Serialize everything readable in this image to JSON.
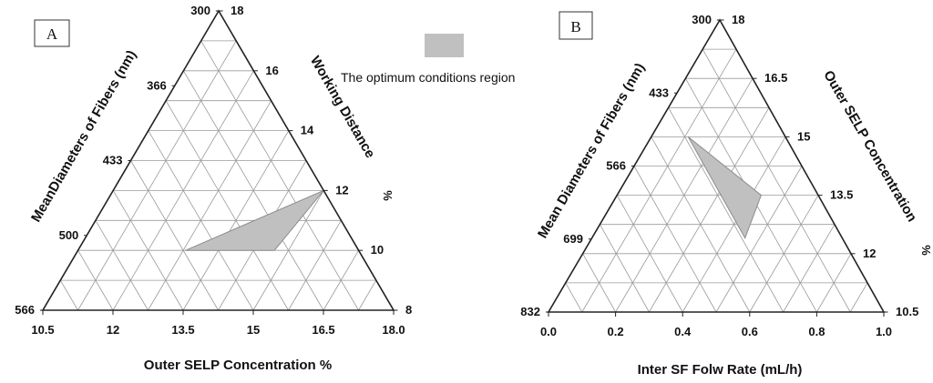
{
  "legend": {
    "label": "The optimum conditions region",
    "color": "#c0c0c0"
  },
  "chart_data": [
    {
      "type": "ternary",
      "panel": "A",
      "left_axis": {
        "label": "MeanDiameters of Fibers  (nm)",
        "ticks": [
          "300",
          "366",
          "433",
          "500",
          "566"
        ]
      },
      "right_axis": {
        "label": "Working Distance",
        "unit": "%",
        "ticks": [
          "18",
          "16",
          "14",
          "12",
          "10",
          "8"
        ]
      },
      "bottom_axis": {
        "label": "Outer SELP Concentration %",
        "ticks": [
          "10.5",
          "12",
          "13.5",
          "15",
          "16.5",
          "18.0"
        ]
      },
      "optimum_region": [
        {
          "outer_selp_concentration": 14.3,
          "working_distance": 10.0,
          "mean_diameter": 535
        },
        {
          "outer_selp_concentration": 18.0,
          "working_distance": 12.0,
          "mean_diameter": 433
        },
        {
          "outer_selp_concentration": 16.2,
          "working_distance": 10.0,
          "mean_diameter": 555
        }
      ]
    },
    {
      "type": "ternary",
      "panel": "B",
      "left_axis": {
        "label": "Mean Diameters of Fibers  (nm)",
        "ticks": [
          "300",
          "433",
          "566",
          "699",
          "832"
        ]
      },
      "right_axis": {
        "label": "Outer SELP Concentration",
        "unit": "%",
        "ticks": [
          "18",
          "16.5",
          "15",
          "13.5",
          "12",
          "10.5"
        ]
      },
      "bottom_axis": {
        "label": "Inter SF Folw Rate  (mL/h)",
        "ticks": [
          "0.0",
          "0.2",
          "0.4",
          "0.6",
          "0.8",
          "1.0"
        ]
      },
      "optimum_region": [
        {
          "inter_sf_flow_rate": 0.71,
          "outer_selp_concentration": 15.0,
          "mean_diameter": 566
        },
        {
          "inter_sf_flow_rate": 0.83,
          "outer_selp_concentration": 13.5,
          "mean_diameter": 633
        },
        {
          "inter_sf_flow_rate": 0.71,
          "outer_selp_concentration": 12.4,
          "mean_diameter": 690
        }
      ]
    }
  ]
}
